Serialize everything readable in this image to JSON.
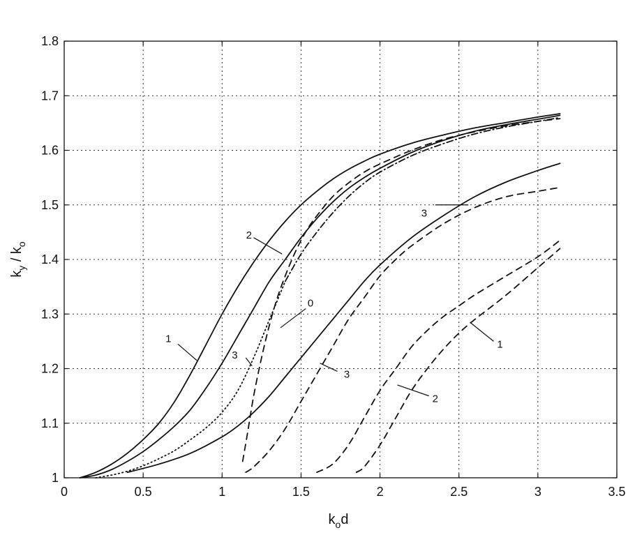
{
  "chart_data": {
    "type": "line",
    "title": "",
    "xlabel": {
      "main": "k",
      "sub": "o",
      "tail": "d"
    },
    "ylabel": {
      "p1": "k",
      "s1": "y",
      "mid": " / k",
      "s2": "o"
    },
    "xlim": [
      0,
      3.5
    ],
    "ylim": [
      1,
      1.8
    ],
    "xticks": [
      0,
      0.5,
      1,
      1.5,
      2,
      2.5,
      3,
      3.5
    ],
    "xtick_labels": [
      "0",
      "0.5",
      "1",
      "1.5",
      "2",
      "2.5",
      "3",
      "3.5"
    ],
    "yticks": [
      1,
      1.1,
      1.2,
      1.3,
      1.4,
      1.5,
      1.6,
      1.7,
      1.8
    ],
    "ytick_labels": [
      "1",
      "1.1",
      "1.2",
      "1.3",
      "1.4",
      "1.5",
      "1.6",
      "1.7",
      "1.8"
    ],
    "grid": true,
    "legend": "none",
    "series": [
      {
        "style": "solid",
        "x": [
          0.1,
          0.2,
          0.3,
          0.4,
          0.5,
          0.6,
          0.7,
          0.8,
          0.9,
          1.0,
          1.1,
          1.2,
          1.3,
          1.4,
          1.5,
          1.6,
          1.7,
          1.8,
          1.9,
          2.0,
          2.2,
          2.4,
          2.6,
          2.8,
          3.0,
          3.14
        ],
        "y": [
          1.0,
          1.01,
          1.025,
          1.045,
          1.07,
          1.1,
          1.14,
          1.19,
          1.245,
          1.3,
          1.35,
          1.395,
          1.435,
          1.47,
          1.5,
          1.525,
          1.547,
          1.565,
          1.58,
          1.593,
          1.613,
          1.628,
          1.641,
          1.651,
          1.661,
          1.667
        ]
      },
      {
        "style": "solid",
        "x": [
          0.1,
          0.2,
          0.3,
          0.4,
          0.5,
          0.6,
          0.7,
          0.8,
          0.9,
          1.0,
          1.1,
          1.2,
          1.3,
          1.4,
          1.5,
          1.6,
          1.7,
          1.8,
          1.9,
          2.0,
          2.2,
          2.4,
          2.6,
          2.8,
          3.0,
          3.14
        ],
        "y": [
          1.0,
          1.005,
          1.015,
          1.03,
          1.048,
          1.07,
          1.095,
          1.125,
          1.165,
          1.21,
          1.26,
          1.31,
          1.36,
          1.4,
          1.44,
          1.475,
          1.505,
          1.53,
          1.55,
          1.567,
          1.596,
          1.618,
          1.635,
          1.647,
          1.657,
          1.664
        ]
      },
      {
        "style": "dotted",
        "x": [
          0.2,
          0.3,
          0.4,
          0.5,
          0.6,
          0.7,
          0.8,
          0.9,
          1.0,
          1.1,
          1.2,
          1.3,
          1.4
        ],
        "y": [
          1.0,
          1.005,
          1.012,
          1.022,
          1.035,
          1.05,
          1.07,
          1.092,
          1.12,
          1.16,
          1.22,
          1.29,
          1.36
        ]
      },
      {
        "style": "dashdot",
        "x": [
          1.4,
          1.5,
          1.6,
          1.7,
          1.8,
          1.9,
          2.0,
          2.2,
          2.4,
          2.6,
          2.8,
          3.0,
          3.14
        ],
        "y": [
          1.36,
          1.41,
          1.45,
          1.485,
          1.515,
          1.54,
          1.56,
          1.59,
          1.612,
          1.63,
          1.643,
          1.653,
          1.66
        ]
      },
      {
        "style": "dashed",
        "x": [
          1.13,
          1.16,
          1.2,
          1.25,
          1.3,
          1.35,
          1.4,
          1.45,
          1.5,
          1.55,
          1.6,
          1.7,
          1.8,
          1.9,
          2.0,
          2.2,
          2.4,
          2.6,
          2.8,
          3.0,
          3.14
        ],
        "y": [
          1.03,
          1.08,
          1.15,
          1.22,
          1.28,
          1.33,
          1.37,
          1.405,
          1.435,
          1.46,
          1.48,
          1.515,
          1.54,
          1.56,
          1.575,
          1.6,
          1.62,
          1.634,
          1.645,
          1.653,
          1.658
        ]
      },
      {
        "style": "solid",
        "x": [
          0.4,
          0.6,
          0.8,
          1.0,
          1.1,
          1.2,
          1.3,
          1.4,
          1.5,
          1.6,
          1.7,
          1.8,
          1.9,
          2.0,
          2.2,
          2.4,
          2.6,
          2.8,
          3.0,
          3.14
        ],
        "y": [
          1.01,
          1.025,
          1.045,
          1.075,
          1.095,
          1.12,
          1.15,
          1.185,
          1.22,
          1.255,
          1.29,
          1.325,
          1.36,
          1.39,
          1.44,
          1.48,
          1.515,
          1.542,
          1.563,
          1.576
        ]
      },
      {
        "style": "dashed",
        "x": [
          1.15,
          1.2,
          1.3,
          1.4,
          1.5,
          1.6,
          1.7,
          1.8,
          1.9,
          2.0,
          2.1,
          2.2,
          2.4,
          2.6,
          2.8,
          3.0,
          3.14
        ],
        "y": [
          1.01,
          1.02,
          1.05,
          1.09,
          1.14,
          1.19,
          1.24,
          1.29,
          1.33,
          1.37,
          1.4,
          1.425,
          1.465,
          1.495,
          1.515,
          1.525,
          1.532
        ]
      },
      {
        "style": "dashed",
        "x": [
          1.6,
          1.7,
          1.8,
          1.9,
          2.0,
          2.1,
          2.2,
          2.3,
          2.4,
          2.5,
          2.6,
          2.8,
          3.0,
          3.14
        ],
        "y": [
          1.01,
          1.025,
          1.06,
          1.11,
          1.16,
          1.2,
          1.24,
          1.27,
          1.295,
          1.315,
          1.335,
          1.37,
          1.405,
          1.435
        ]
      },
      {
        "style": "dashed",
        "x": [
          1.85,
          1.9,
          2.0,
          2.1,
          2.2,
          2.3,
          2.4,
          2.5,
          2.6,
          2.8,
          3.0,
          3.14
        ],
        "y": [
          1.01,
          1.02,
          1.06,
          1.11,
          1.16,
          1.2,
          1.235,
          1.265,
          1.29,
          1.335,
          1.385,
          1.42
        ]
      }
    ],
    "annotations": [
      {
        "text": "1",
        "label_at": [
          0.66,
          1.255
        ],
        "line_from": [
          0.72,
          1.245
        ],
        "line_to": [
          0.84,
          1.215
        ]
      },
      {
        "text": "2",
        "label_at": [
          1.17,
          1.445
        ],
        "line_from": [
          1.2,
          1.44
        ],
        "line_to": [
          1.38,
          1.41
        ]
      },
      {
        "text": "3",
        "label_at": [
          1.08,
          1.225
        ],
        "line_from": [
          1.15,
          1.22
        ],
        "line_to": [
          1.19,
          1.205
        ]
      },
      {
        "text": "0",
        "label_at": [
          1.56,
          1.32
        ],
        "line_from": [
          1.53,
          1.31
        ],
        "line_to": [
          1.37,
          1.275
        ]
      },
      {
        "text": "3",
        "label_at": [
          2.28,
          1.485
        ],
        "line_from": [
          2.35,
          1.5
        ],
        "line_to": [
          2.56,
          1.5
        ]
      },
      {
        "text": "3",
        "label_at": [
          1.79,
          1.19
        ],
        "line_from": [
          1.73,
          1.195
        ],
        "line_to": [
          1.62,
          1.21
        ]
      },
      {
        "text": "1",
        "label_at": [
          2.76,
          1.245
        ],
        "line_from": [
          2.72,
          1.25
        ],
        "line_to": [
          2.57,
          1.285
        ]
      },
      {
        "text": "2",
        "label_at": [
          2.35,
          1.145
        ],
        "line_from": [
          2.31,
          1.15
        ],
        "line_to": [
          2.11,
          1.17
        ]
      }
    ]
  }
}
